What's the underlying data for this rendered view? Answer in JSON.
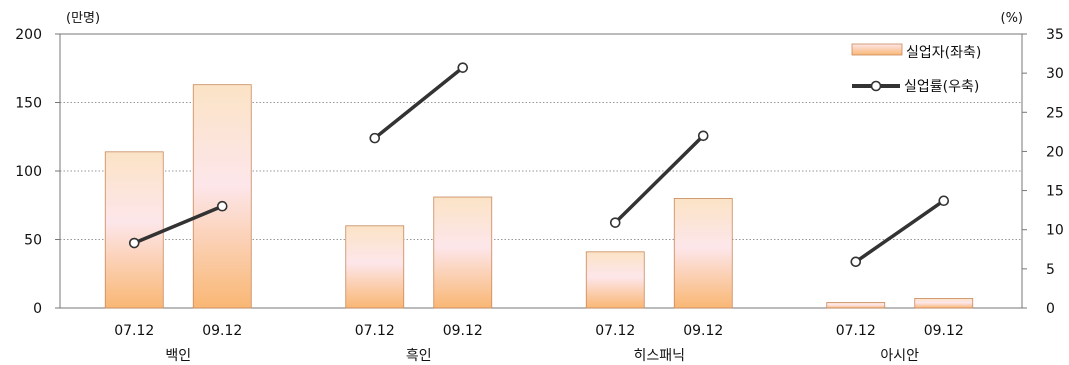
{
  "chart_data": {
    "type": "bar",
    "groups": [
      "백인",
      "흑인",
      "히스패닉",
      "아시안"
    ],
    "categories": [
      "07.12",
      "09.12"
    ],
    "y_left": {
      "unit": "(만명)",
      "min": 0,
      "max": 200,
      "ticks": [
        0,
        50,
        100,
        150,
        200
      ]
    },
    "y_right": {
      "unit": "(%)",
      "min": 0,
      "max": 35,
      "ticks": [
        0,
        5,
        10,
        15,
        20,
        25,
        30,
        35
      ]
    },
    "series": [
      {
        "name": "실업자(좌축)",
        "type": "bar",
        "axis": "left",
        "values": [
          [
            114,
            163
          ],
          [
            60,
            81
          ],
          [
            41,
            80
          ],
          [
            4,
            7
          ]
        ]
      },
      {
        "name": "실업률(우축)",
        "type": "line",
        "axis": "right",
        "values": [
          [
            8.3,
            13.0
          ],
          [
            21.7,
            30.7
          ],
          [
            10.9,
            22.0
          ],
          [
            5.9,
            13.7
          ]
        ]
      }
    ],
    "grid": "horizontal dotted",
    "legend": "top-right",
    "colors": {
      "bar_top": "#fbe3c6",
      "bar_mid": "#fde6ea",
      "bar_bottom": "#f9b774",
      "bar_border": "#c9885a",
      "line": "#333333",
      "grid": "#9a9a9a"
    }
  }
}
